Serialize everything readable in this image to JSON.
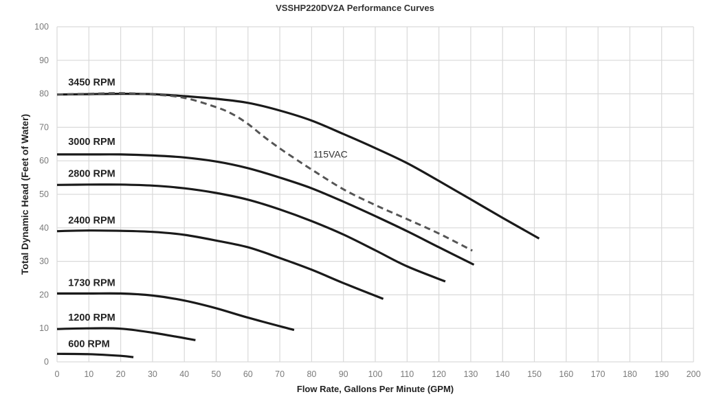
{
  "chart_data": {
    "type": "line",
    "title": "VSSHP220DV2A Performance Curves",
    "xlabel": "Flow Rate, Gallons Per Minute (GPM)",
    "ylabel": "Total Dynamic Head (Feet of Water)",
    "xlim": [
      0,
      200
    ],
    "ylim": [
      0,
      100
    ],
    "x_ticks": [
      0,
      10,
      20,
      30,
      40,
      50,
      60,
      70,
      80,
      90,
      100,
      110,
      120,
      130,
      140,
      150,
      160,
      170,
      180,
      190,
      200
    ],
    "y_ticks": [
      0,
      10,
      20,
      30,
      40,
      50,
      60,
      70,
      80,
      90,
      100
    ],
    "grid": true,
    "legend": "none (inline series labels)",
    "series": [
      {
        "name": "3450 RPM",
        "style": "solid",
        "label_pos": [
          3.5,
          82.5
        ],
        "x": [
          0,
          10,
          20,
          30,
          40,
          50,
          60,
          70,
          80,
          90,
          100,
          110,
          120,
          130,
          140,
          151.5
        ],
        "y": [
          79.8,
          79.9,
          80.0,
          79.9,
          79.3,
          78.5,
          77.3,
          75.0,
          72.0,
          68.0,
          63.8,
          59.3,
          54.0,
          48.5,
          43.0,
          36.8
        ]
      },
      {
        "name": "115VAC",
        "style": "dashed",
        "label_pos": [
          80.5,
          61
        ],
        "x": [
          0,
          10,
          20,
          30,
          40,
          50,
          55,
          60,
          65,
          70,
          75,
          80,
          90,
          100,
          110,
          120,
          130.5
        ],
        "y": [
          79.8,
          80.0,
          80.2,
          79.8,
          78.8,
          76.0,
          74.0,
          71.0,
          67.2,
          63.7,
          60.5,
          57.4,
          51.5,
          46.8,
          42.6,
          38.3,
          33.2
        ]
      },
      {
        "name": "3000 RPM",
        "style": "solid",
        "label_pos": [
          3.5,
          64.8
        ],
        "x": [
          0,
          10,
          20,
          30,
          40,
          50,
          60,
          70,
          80,
          90,
          100,
          110,
          120,
          131
        ],
        "y": [
          61.9,
          61.9,
          61.9,
          61.6,
          61.0,
          59.8,
          57.8,
          55.0,
          51.8,
          47.8,
          43.5,
          39.0,
          34.2,
          29.0
        ]
      },
      {
        "name": "2800 RPM",
        "style": "solid",
        "label_pos": [
          3.5,
          55.2
        ],
        "x": [
          0,
          10,
          20,
          30,
          40,
          50,
          60,
          70,
          80,
          90,
          100,
          110,
          122
        ],
        "y": [
          52.8,
          52.9,
          52.9,
          52.6,
          51.8,
          50.4,
          48.4,
          45.5,
          42.0,
          38.0,
          33.3,
          28.5,
          24.0
        ]
      },
      {
        "name": "2400 RPM",
        "style": "solid",
        "label_pos": [
          3.5,
          41.3
        ],
        "x": [
          0,
          10,
          20,
          30,
          40,
          50,
          60,
          70,
          80,
          90,
          102.5
        ],
        "y": [
          39.0,
          39.2,
          39.1,
          38.8,
          37.9,
          36.2,
          34.2,
          31.0,
          27.5,
          23.5,
          18.8
        ]
      },
      {
        "name": "1730 RPM",
        "style": "solid",
        "label_pos": [
          3.5,
          22.6
        ],
        "x": [
          0,
          10,
          20,
          30,
          40,
          50,
          60,
          74.5
        ],
        "y": [
          20.4,
          20.4,
          20.4,
          19.8,
          18.3,
          16.0,
          13.2,
          9.5
        ]
      },
      {
        "name": "1200 RPM",
        "style": "solid",
        "label_pos": [
          3.5,
          12.3
        ],
        "x": [
          0,
          10,
          20,
          30,
          43.5
        ],
        "y": [
          9.8,
          10.0,
          9.9,
          8.7,
          6.5
        ]
      },
      {
        "name": "600 RPM",
        "style": "solid",
        "label_pos": [
          3.5,
          4.4
        ],
        "x": [
          0,
          10,
          20,
          24
        ],
        "y": [
          2.4,
          2.3,
          1.8,
          1.4
        ]
      }
    ],
    "annotations": [
      {
        "text": "115VAC",
        "x": 80.5,
        "y": 61,
        "refers_to": "dashed curve"
      }
    ]
  },
  "colors": {
    "line": "#1a1a1a",
    "dashed_line": "#555555",
    "grid": "#d9d9d9",
    "tick_text": "#7a7a7a"
  }
}
